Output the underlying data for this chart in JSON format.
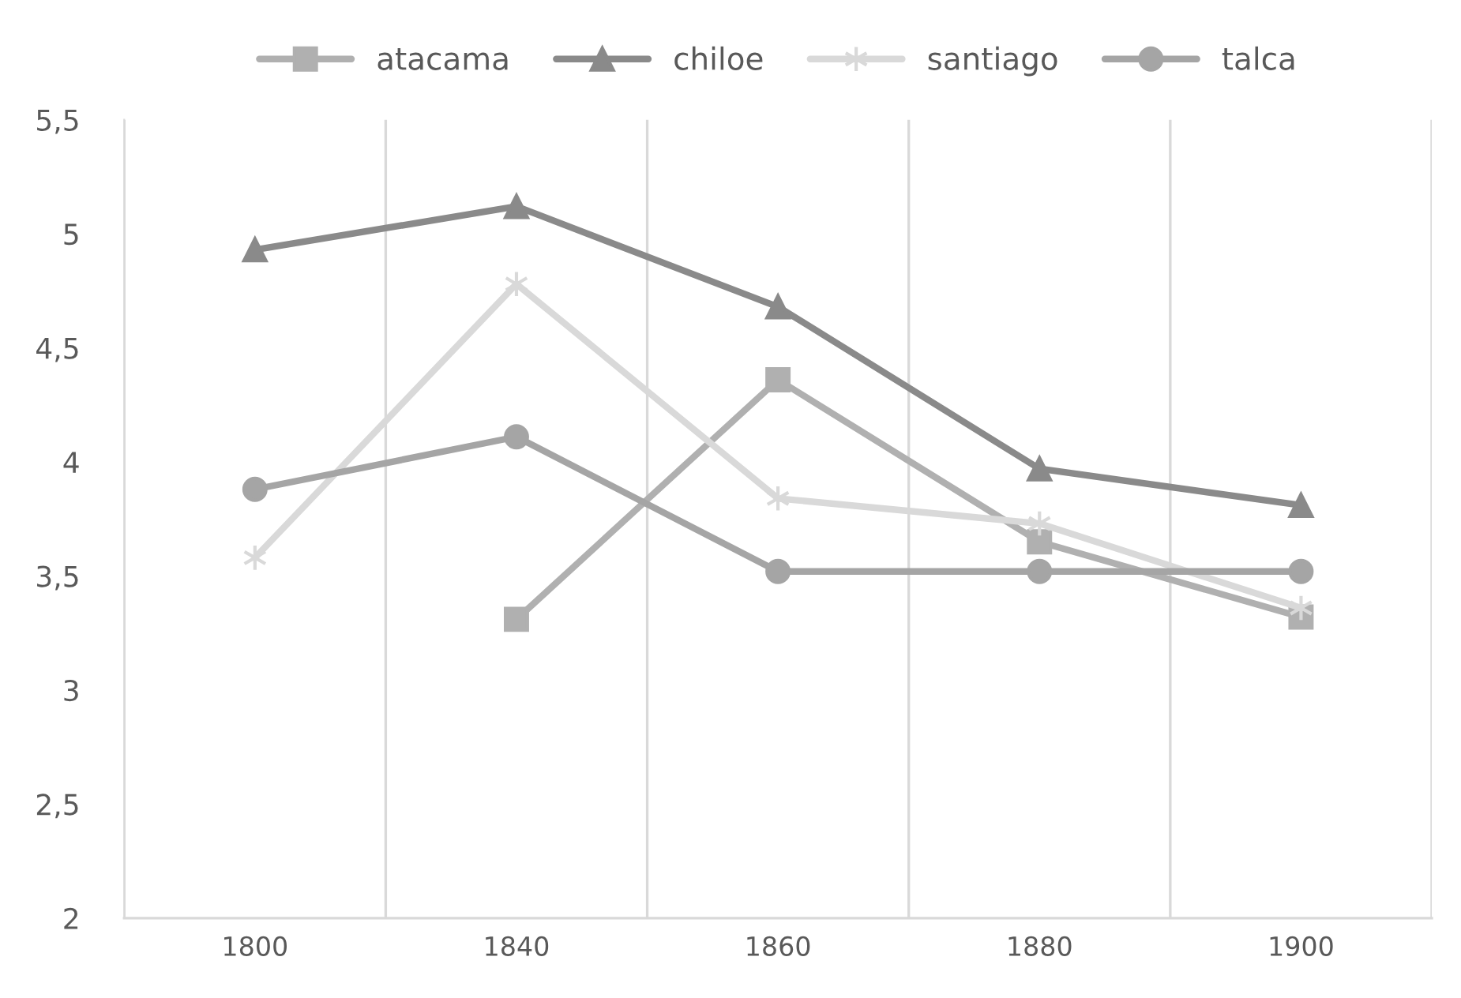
{
  "chart_data": {
    "type": "line",
    "categories": [
      "1800",
      "1840",
      "1860",
      "1880",
      "1900"
    ],
    "series": [
      {
        "name": "atacama",
        "color": "#b0b0b0",
        "marker": "square",
        "values": [
          null,
          3.31,
          4.36,
          3.65,
          3.32
        ]
      },
      {
        "name": "chiloe",
        "color": "#8a8a8a",
        "marker": "triangle",
        "values": [
          4.93,
          5.12,
          4.68,
          3.97,
          3.81
        ]
      },
      {
        "name": "santiago",
        "color": "#d9d9d9",
        "marker": "cross",
        "values": [
          3.58,
          4.78,
          3.84,
          3.73,
          3.36
        ]
      },
      {
        "name": "talca",
        "color": "#a5a5a5",
        "marker": "circle",
        "values": [
          3.88,
          4.11,
          3.52,
          3.52,
          3.52
        ]
      }
    ],
    "ylim": [
      2,
      5.5
    ],
    "yticks": [
      {
        "value": 2,
        "label": "2"
      },
      {
        "value": 2.5,
        "label": "2,5"
      },
      {
        "value": 3,
        "label": "3"
      },
      {
        "value": 3.5,
        "label": "3,5"
      },
      {
        "value": 4,
        "label": "4"
      },
      {
        "value": 4.5,
        "label": "4,5"
      },
      {
        "value": 5,
        "label": "5"
      },
      {
        "value": 5.5,
        "label": "5,5"
      }
    ],
    "grid": "x",
    "legend": "top",
    "line_style": "solid"
  }
}
